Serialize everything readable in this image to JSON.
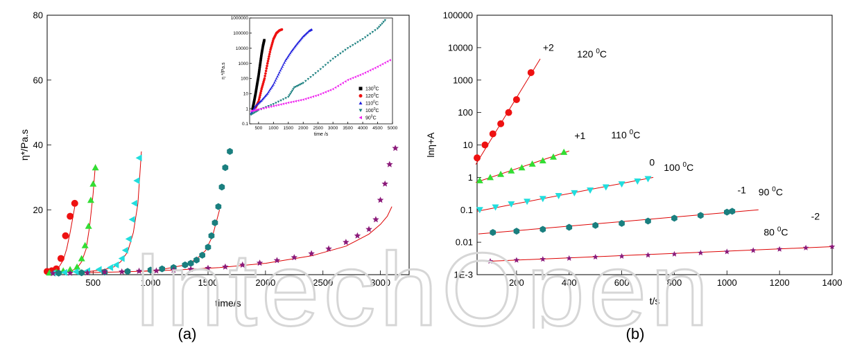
{
  "watermark": "IntechOpen",
  "chart_data": [
    {
      "type": "scatter",
      "panel_label": "(a)",
      "xlabel": "time/s",
      "ylabel": "η*/Pa.s",
      "xlim": [
        100,
        3250
      ],
      "ylim": [
        0,
        80
      ],
      "xticks": [
        500,
        1000,
        1500,
        2000,
        2500,
        3000
      ],
      "yticks": [
        20,
        40,
        60,
        80
      ],
      "colors": {
        "130": "#000000",
        "120": "#ee1111",
        "110": "#33dd33",
        "100": "#22dddd",
        "90": "#1a7f7f",
        "80": "#8b1a7a",
        "fit": "#dd0000"
      },
      "series": [
        {
          "key": "120",
          "marker": "circle",
          "color": "#ee1111",
          "x": [
            100,
            140,
            180,
            220,
            260,
            300,
            340
          ],
          "y": [
            1,
            1.2,
            1.8,
            5,
            12,
            18,
            22
          ]
        },
        {
          "key": "110",
          "marker": "triangle",
          "color": "#33dd33",
          "x": [
            120,
            180,
            240,
            300,
            360,
            400,
            430,
            460,
            480,
            500,
            520
          ],
          "y": [
            0.6,
            0.8,
            1.2,
            1.6,
            2.4,
            5,
            9,
            15,
            23,
            28,
            33
          ]
        },
        {
          "key": "100",
          "marker": "triangle-left",
          "color": "#22dddd",
          "x": [
            150,
            250,
            350,
            450,
            550,
            650,
            700,
            750,
            780,
            810,
            840,
            860,
            880,
            900
          ],
          "y": [
            0.5,
            0.7,
            0.9,
            1.2,
            1.6,
            2.2,
            3,
            5,
            7.5,
            11,
            17,
            22,
            29,
            36
          ]
        },
        {
          "key": "90",
          "marker": "hexagon",
          "color": "#1a7f7f",
          "x": [
            200,
            400,
            600,
            800,
            1000,
            1100,
            1200,
            1300,
            1350,
            1400,
            1450,
            1500,
            1530,
            1560,
            1590,
            1620,
            1650,
            1690
          ],
          "y": [
            0.5,
            0.6,
            0.8,
            1,
            1.4,
            1.8,
            2.2,
            3,
            3.5,
            4.5,
            6,
            8.5,
            12,
            16,
            21,
            27,
            33,
            38
          ]
        },
        {
          "key": "80",
          "marker": "star",
          "color": "#8b1a7a",
          "x": [
            150,
            300,
            450,
            600,
            750,
            900,
            1050,
            1200,
            1350,
            1500,
            1650,
            1800,
            1950,
            2100,
            2250,
            2400,
            2550,
            2700,
            2800,
            2900,
            2960,
            3000,
            3040,
            3080,
            3130
          ],
          "y": [
            0.4,
            0.5,
            0.6,
            0.8,
            0.9,
            1.1,
            1.2,
            1.4,
            1.7,
            2,
            2.4,
            3,
            3.6,
            4.4,
            5.3,
            6.5,
            8,
            10,
            12,
            14,
            17,
            23,
            28,
            34,
            39
          ]
        }
      ],
      "fits": [
        {
          "x": [
            160,
            200,
            240,
            270,
            300,
            320,
            340
          ],
          "y": [
            1.2,
            2.2,
            4.5,
            8,
            13,
            17,
            21
          ]
        },
        {
          "x": [
            300,
            360,
            400,
            440,
            470,
            500,
            520
          ],
          "y": [
            1,
            2,
            4,
            8,
            15,
            25,
            34
          ]
        },
        {
          "x": [
            400,
            500,
            600,
            680,
            740,
            800,
            850,
            890,
            920
          ],
          "y": [
            0.8,
            1.1,
            1.6,
            2.4,
            4,
            7,
            13,
            22,
            38
          ]
        },
        {
          "x": [
            900,
            1100,
            1300,
            1400,
            1480,
            1540,
            1600
          ],
          "y": [
            0.9,
            1.6,
            3,
            4.8,
            7.5,
            12,
            20
          ]
        },
        {
          "x": [
            400,
            800,
            1200,
            1600,
            2000,
            2400,
            2700,
            2900,
            3000,
            3060,
            3100
          ],
          "y": [
            0.55,
            0.9,
            1.4,
            2.2,
            3.5,
            5.8,
            8.8,
            12.5,
            15.5,
            18,
            21
          ]
        }
      ],
      "inset": {
        "type": "scatter",
        "xlabel": "time /s",
        "ylabel": "η */Pa.s",
        "yscale": "log",
        "xlim": [
          200,
          5000
        ],
        "ylim": [
          0.1,
          1000000
        ],
        "xticks": [
          500,
          1000,
          1500,
          2000,
          2500,
          3000,
          3500,
          4000,
          4500,
          5000
        ],
        "yticks": [
          0.1,
          1,
          10,
          100,
          1000,
          10000,
          100000,
          1000000
        ],
        "ytick_labels": [
          "0.1",
          "1",
          "10",
          "100",
          "1000",
          "10000",
          "100000",
          "1000000"
        ],
        "legend": {
          "position": "right-bottom",
          "entries": [
            {
              "label": "130",
              "color": "#000000",
              "marker": "square"
            },
            {
              "label": "120",
              "color": "#ee1111",
              "marker": "circle"
            },
            {
              "label": "110",
              "color": "#2222dd",
              "marker": "triangle"
            },
            {
              "label": "100",
              "color": "#1a7f7f",
              "marker": "triangle-down"
            },
            {
              "label": "90",
              "color": "#ee22ee",
              "marker": "triangle-left"
            }
          ],
          "unit": "0C"
        },
        "series": [
          {
            "key": "130",
            "color": "#000000",
            "x": [
              300,
              350,
              400,
              450,
              500,
              550,
              600,
              650,
              700
            ],
            "y": [
              1,
              3,
              10,
              40,
              150,
              800,
              4000,
              15000,
              40000
            ]
          },
          {
            "key": "120",
            "color": "#ee1111",
            "x": [
              400,
              500,
              600,
              700,
              800,
              900,
              1000,
              1100,
              1200,
              1300
            ],
            "y": [
              1.2,
              3,
              20,
              100,
              1000,
              8000,
              40000,
              100000,
              150000,
              180000
            ]
          },
          {
            "key": "110",
            "color": "#2222dd",
            "x": [
              250,
              400,
              600,
              800,
              1000,
              1200,
              1400,
              1600,
              1800,
              2000,
              2200,
              2300
            ],
            "y": [
              0.5,
              1.5,
              3.5,
              10,
              40,
              250,
              1500,
              6000,
              20000,
              60000,
              140000,
              180000
            ]
          },
          {
            "key": "100",
            "color": "#1a7f7f",
            "x": [
              250,
              500,
              1000,
              1500,
              1700,
              2000,
              2500,
              3000,
              3500,
              4000,
              4500,
              4800
            ],
            "y": [
              0.4,
              0.8,
              2,
              6,
              25,
              50,
              300,
              2000,
              10000,
              40000,
              200000,
              900000
            ]
          },
          {
            "key": "90",
            "color": "#ee22ee",
            "x": [
              250,
              500,
              1000,
              1500,
              2000,
              2500,
              3000,
              3500,
              4000,
              4500,
              5000
            ],
            "y": [
              0.7,
              0.9,
              1.5,
              2.5,
              4,
              8,
              20,
              80,
              200,
              600,
              2000
            ]
          }
        ]
      }
    },
    {
      "type": "scatter",
      "panel_label": "(b)",
      "xlabel": "t/s",
      "ylabel": "lnη+A",
      "yscale": "log",
      "xlim": [
        50,
        1400
      ],
      "ylim": [
        0.001,
        100000
      ],
      "xticks": [
        200,
        400,
        600,
        800,
        1000,
        1200,
        1400
      ],
      "yticks": [
        0.001,
        0.01,
        0.1,
        1,
        10,
        100,
        1000,
        10000,
        100000
      ],
      "ytick_labels": [
        "1E-3",
        "0.01",
        "0.1",
        "1",
        "10",
        "100",
        "1000",
        "10000",
        "100000"
      ],
      "annotations": [
        {
          "offset": "+2",
          "temp": "120",
          "sup": "0",
          "unit": "C",
          "at": [
            300,
            8000
          ],
          "tempAt": [
            430,
            5000
          ]
        },
        {
          "offset": "+1",
          "temp": "110",
          "sup": "0",
          "unit": "C",
          "at": [
            420,
            15
          ],
          "tempAt": [
            560,
            16
          ]
        },
        {
          "offset": "0",
          "temp": "100",
          "sup": "0",
          "unit": "C",
          "at": [
            705,
            2.3
          ],
          "tempAt": [
            760,
            1.6
          ]
        },
        {
          "offset": "-1",
          "temp": "90",
          "sup": "0",
          "unit": "C",
          "at": [
            1040,
            0.32
          ],
          "tempAt": [
            1120,
            0.28
          ]
        },
        {
          "offset": "-2",
          "temp": "80",
          "sup": "0",
          "unit": "C",
          "at": [
            1320,
            0.05
          ],
          "tempAt": [
            1140,
            0.016
          ]
        }
      ],
      "series": [
        {
          "key": "120",
          "marker": "circle",
          "color": "#ee1111",
          "x": [
            50,
            80,
            110,
            140,
            170,
            200,
            255
          ],
          "y": [
            4,
            10,
            22,
            45,
            100,
            250,
            1700
          ]
        },
        {
          "key": "110",
          "marker": "triangle",
          "color": "#33dd33",
          "x": [
            60,
            100,
            140,
            180,
            220,
            260,
            300,
            340,
            380
          ],
          "y": [
            0.8,
            1.0,
            1.25,
            1.6,
            2.0,
            2.6,
            3.3,
            4.3,
            6
          ]
        },
        {
          "key": "100",
          "marker": "triangle-down",
          "color": "#22dddd",
          "x": [
            60,
            120,
            180,
            240,
            300,
            360,
            420,
            480,
            540,
            600,
            660,
            700
          ],
          "y": [
            0.1,
            0.12,
            0.15,
            0.18,
            0.22,
            0.27,
            0.33,
            0.4,
            0.5,
            0.62,
            0.76,
            0.9
          ]
        },
        {
          "key": "90",
          "marker": "hexagon",
          "color": "#1a7f7f",
          "x": [
            110,
            200,
            300,
            400,
            500,
            600,
            700,
            800,
            900,
            1000,
            1020
          ],
          "y": [
            0.02,
            0.022,
            0.025,
            0.029,
            0.033,
            0.038,
            0.045,
            0.055,
            0.067,
            0.085,
            0.09
          ]
        },
        {
          "key": "80",
          "marker": "star",
          "color": "#8b1a7a",
          "x": [
            100,
            200,
            300,
            400,
            500,
            600,
            700,
            800,
            900,
            1000,
            1100,
            1200,
            1300,
            1400
          ],
          "y": [
            0.0026,
            0.0028,
            0.003,
            0.0032,
            0.0035,
            0.0037,
            0.004,
            0.0043,
            0.0047,
            0.0051,
            0.0056,
            0.0061,
            0.0067,
            0.0073
          ]
        }
      ],
      "fits": [
        {
          "x": [
            45,
            290
          ],
          "y": [
            2.5,
            4500
          ]
        },
        {
          "x": [
            45,
            400
          ],
          "y": [
            0.7,
            6.5
          ]
        },
        {
          "x": [
            50,
            720
          ],
          "y": [
            0.09,
            1.0
          ]
        },
        {
          "x": [
            55,
            1120
          ],
          "y": [
            0.018,
            0.1
          ]
        },
        {
          "x": [
            100,
            1400
          ],
          "y": [
            0.0026,
            0.0073
          ]
        }
      ]
    }
  ]
}
